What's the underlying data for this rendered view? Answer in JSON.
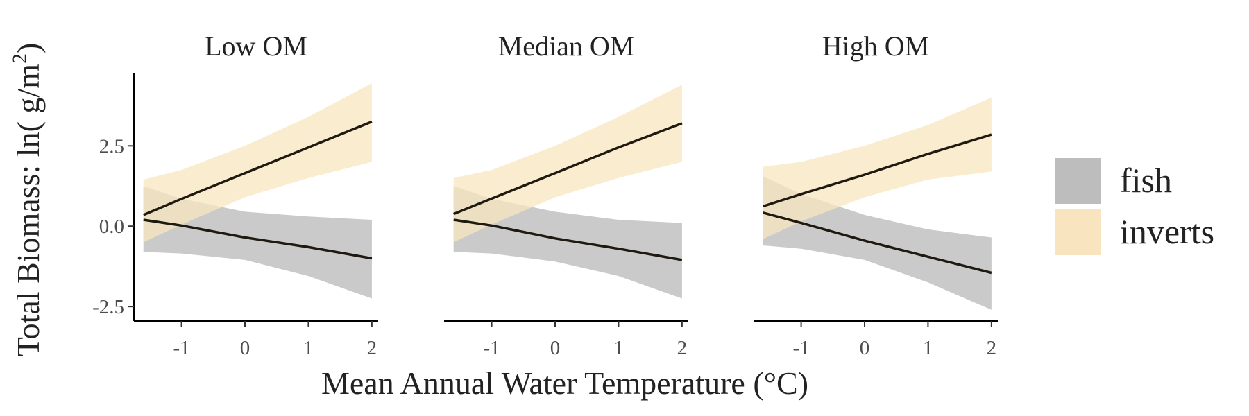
{
  "chart_data": {
    "type": "line",
    "xlabel": "Mean Annual Water Temperature (°C)",
    "ylabel": {
      "prefix": "Total Biomass: ln( g/m",
      "superscript": "2",
      "suffix": ")"
    },
    "xlim": [
      -1.75,
      2.1
    ],
    "ylim": [
      -2.95,
      4.75
    ],
    "x_ticks": [
      -1,
      0,
      1,
      2
    ],
    "x_tick_labels": [
      "-1",
      "0",
      "1",
      "2"
    ],
    "y_ticks": [
      -2.5,
      0,
      2.5
    ],
    "y_tick_labels": [
      "-2.5",
      "0.0",
      "2.5"
    ],
    "legend": {
      "position": "right",
      "entries": [
        {
          "label": "fish",
          "color": "#bdbdbd"
        },
        {
          "label": "inverts",
          "color": "#f8e5bf"
        }
      ]
    },
    "colors": {
      "line": "#1f1a0f",
      "fish_band": "#bdbdbd",
      "inverts_band": "#f8e5bf"
    },
    "panels": [
      {
        "title": "Low OM",
        "series": [
          {
            "name": "fish",
            "x": [
              -1.6,
              -1,
              0,
              1,
              2
            ],
            "y": [
              0.2,
              0.02,
              -0.35,
              -0.65,
              -1.0
            ],
            "lower": [
              -0.8,
              -0.85,
              -1.05,
              -1.55,
              -2.25
            ],
            "upper": [
              1.25,
              0.85,
              0.45,
              0.3,
              0.2
            ]
          },
          {
            "name": "inverts",
            "x": [
              -1.6,
              -1,
              0,
              1,
              2
            ],
            "y": [
              0.35,
              0.85,
              1.65,
              2.45,
              3.25
            ],
            "lower": [
              -0.5,
              0.05,
              0.9,
              1.5,
              2.0
            ],
            "upper": [
              1.45,
              1.75,
              2.5,
              3.4,
              4.45
            ]
          }
        ]
      },
      {
        "title": "Median OM",
        "series": [
          {
            "name": "fish",
            "x": [
              -1.6,
              -1,
              0,
              1,
              2
            ],
            "y": [
              0.2,
              0.02,
              -0.38,
              -0.7,
              -1.05
            ],
            "lower": [
              -0.8,
              -0.85,
              -1.1,
              -1.55,
              -2.25
            ],
            "upper": [
              1.25,
              0.85,
              0.45,
              0.2,
              0.1
            ]
          },
          {
            "name": "inverts",
            "x": [
              -1.6,
              -1,
              0,
              1,
              2
            ],
            "y": [
              0.38,
              0.86,
              1.65,
              2.45,
              3.2
            ],
            "lower": [
              -0.5,
              0.05,
              0.9,
              1.5,
              2.0
            ],
            "upper": [
              1.5,
              1.75,
              2.5,
              3.4,
              4.4
            ]
          }
        ]
      },
      {
        "title": "High OM",
        "series": [
          {
            "name": "fish",
            "x": [
              -1.6,
              -1,
              0,
              1,
              2
            ],
            "y": [
              0.42,
              0.1,
              -0.45,
              -0.95,
              -1.45
            ],
            "lower": [
              -0.6,
              -0.7,
              -1.05,
              -1.75,
              -2.6
            ],
            "upper": [
              1.55,
              1.0,
              0.35,
              -0.1,
              -0.35
            ]
          },
          {
            "name": "inverts",
            "x": [
              -1.6,
              -1,
              0,
              1,
              2
            ],
            "y": [
              0.62,
              1.0,
              1.6,
              2.25,
              2.85
            ],
            "lower": [
              -0.4,
              0.15,
              0.9,
              1.45,
              1.7
            ],
            "upper": [
              1.85,
              2.0,
              2.5,
              3.15,
              4.0
            ]
          }
        ]
      }
    ]
  }
}
